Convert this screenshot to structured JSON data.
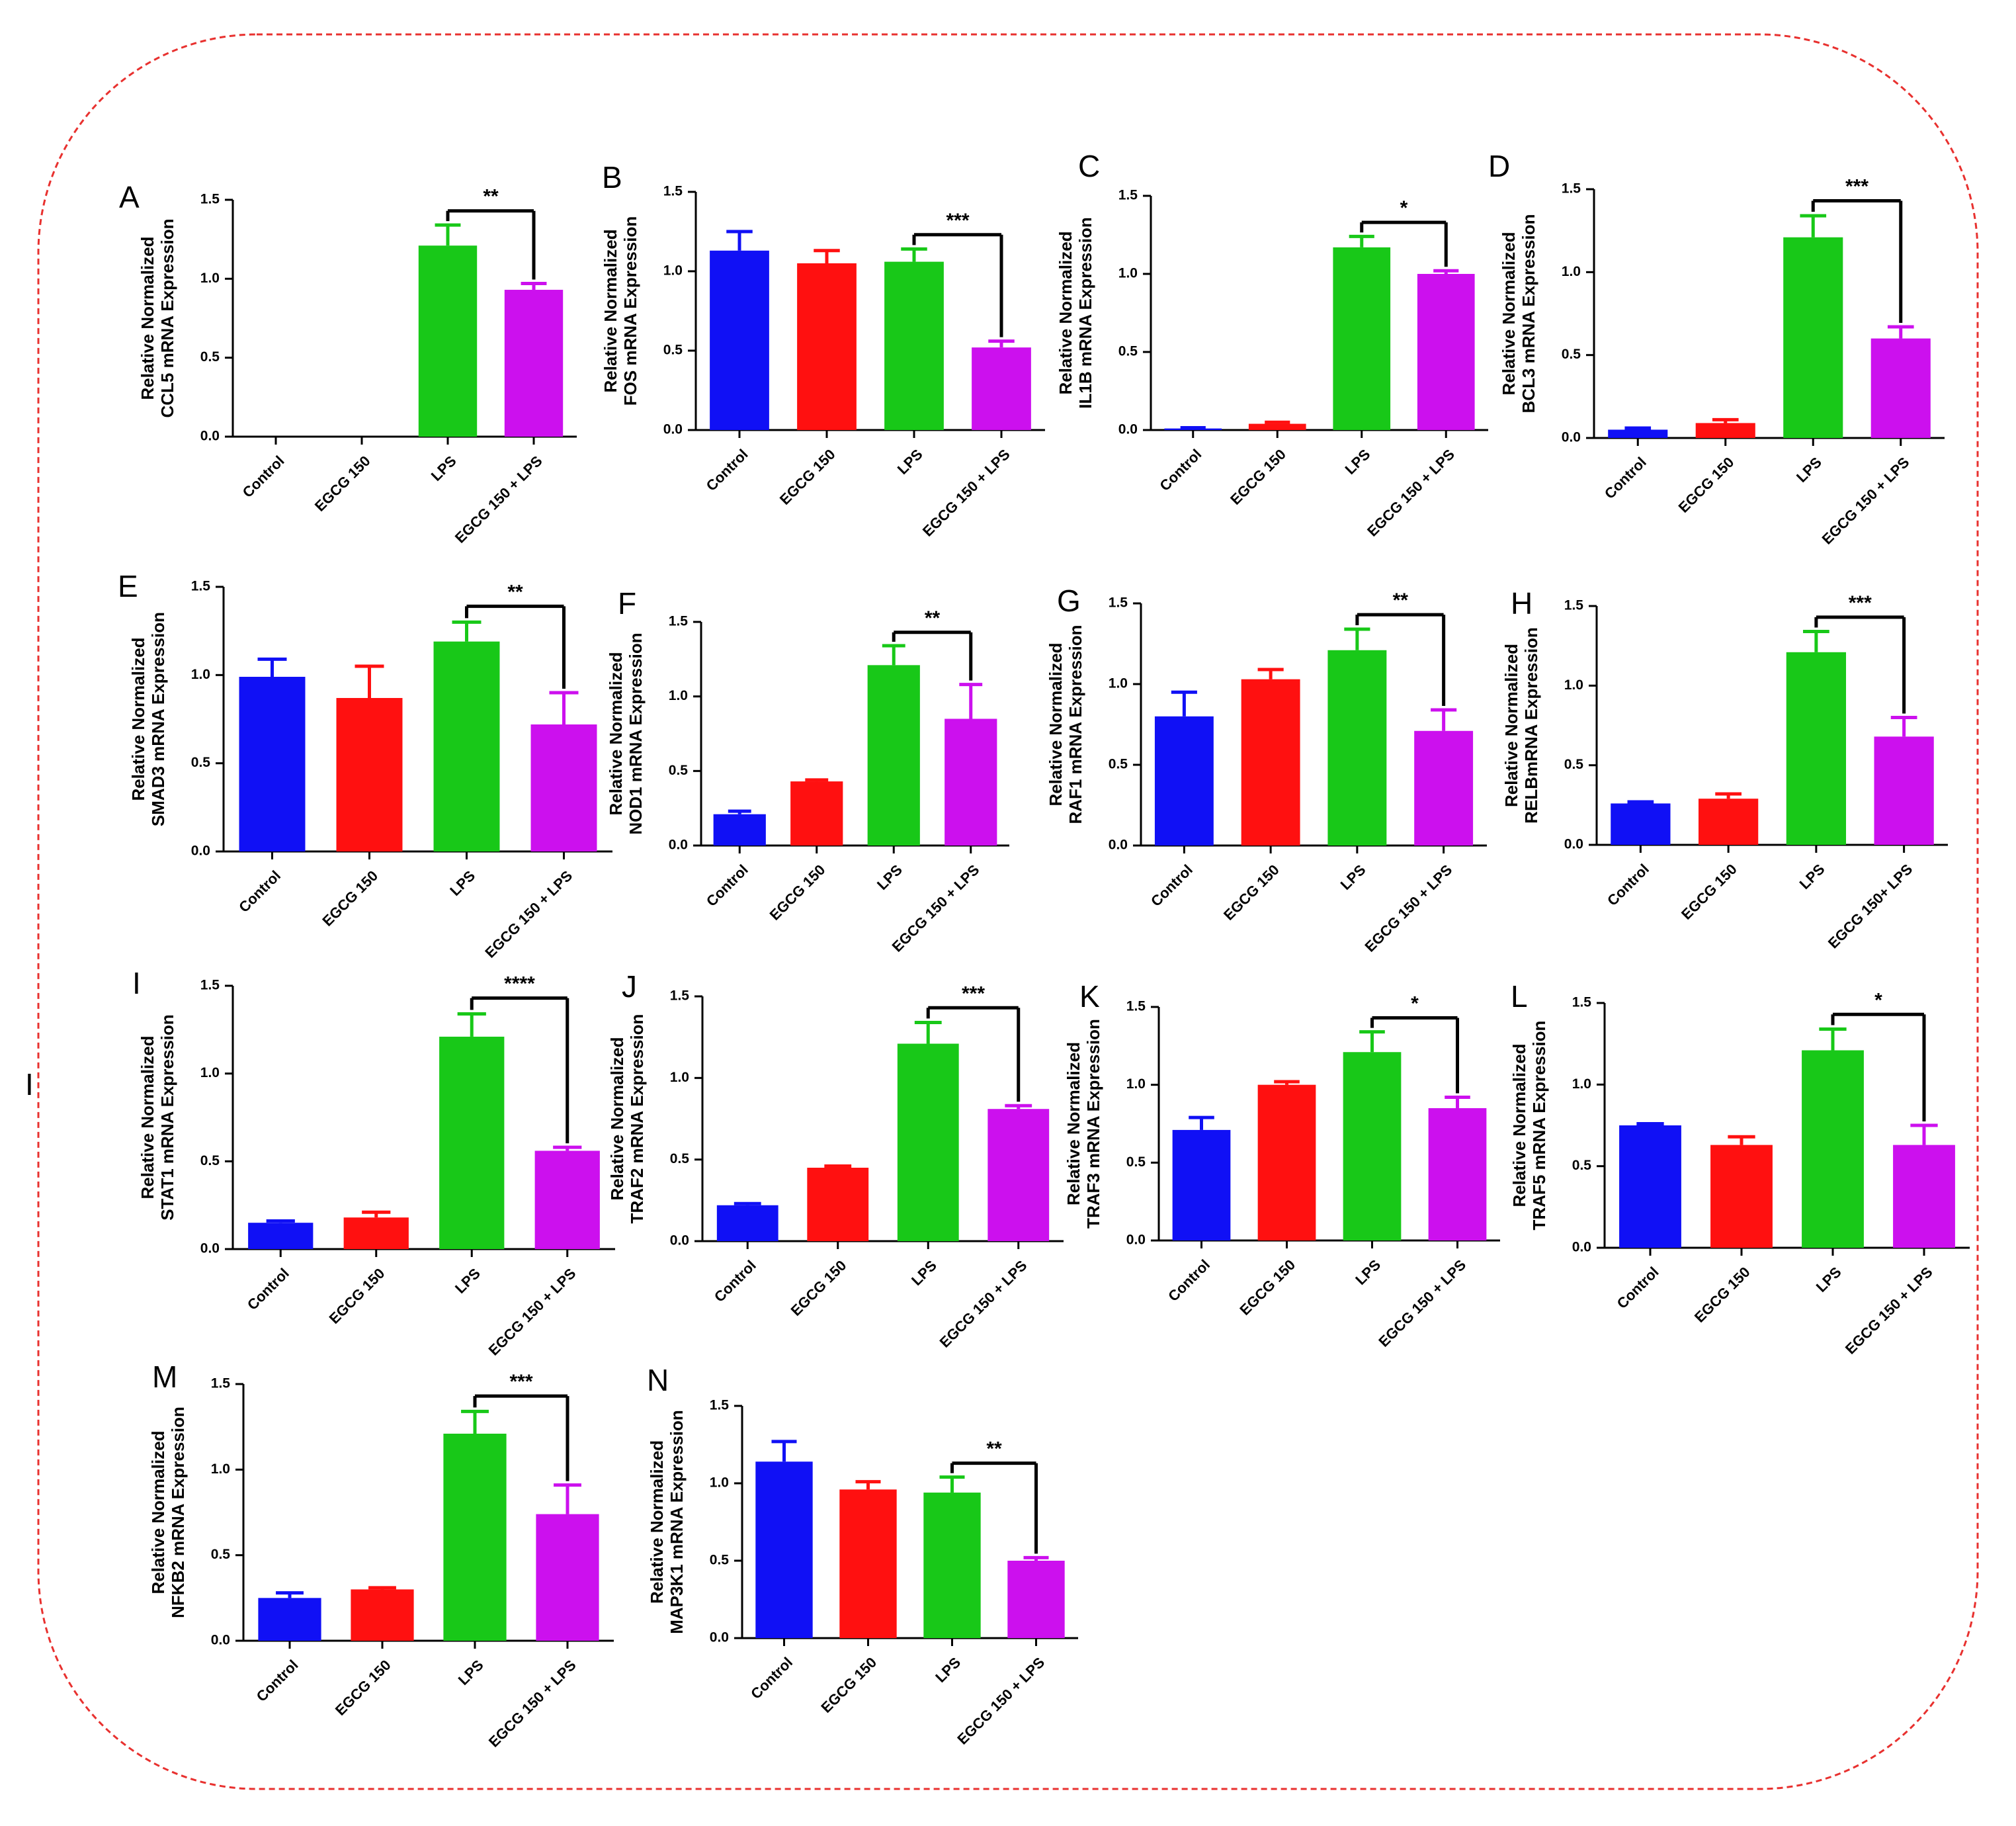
{
  "figure": {
    "border_color": "#e8312f",
    "stray_mark": "I"
  },
  "colors": {
    "Control": "#1010f5",
    "EGCG 150": "#ff1010",
    "LPS": "#18c818",
    "EGCG 150 + LPS": "#cc10ee"
  },
  "chart_data": [
    {
      "panel": "A",
      "type": "bar",
      "ylabel": [
        "Relative Normalized",
        "CCL5 mRNA Expression"
      ],
      "categories": [
        "Control",
        "EGCG 150",
        "LPS",
        "EGCG 150 + LPS"
      ],
      "values": [
        0.0,
        0.0,
        1.21,
        0.93
      ],
      "errors": [
        0,
        0,
        0.13,
        0.04
      ],
      "ylim": [
        0,
        1.5
      ],
      "yticks": [
        "0.0",
        "0.5",
        "1.0",
        "1.5"
      ],
      "significance": {
        "from": 2,
        "to": 3,
        "label": "**"
      }
    },
    {
      "panel": "B",
      "type": "bar",
      "ylabel": [
        "Relative Normalized",
        "FOS mRNA Expression"
      ],
      "categories": [
        "Control",
        "EGCG 150",
        "LPS",
        "EGCG 150 + LPS"
      ],
      "values": [
        1.13,
        1.05,
        1.06,
        0.52
      ],
      "errors": [
        0.12,
        0.08,
        0.08,
        0.04
      ],
      "ylim": [
        0,
        1.5
      ],
      "yticks": [
        "0.0",
        "0.5",
        "1.0",
        "1.5"
      ],
      "significance": {
        "from": 2,
        "to": 3,
        "label": "***"
      }
    },
    {
      "panel": "C",
      "type": "bar",
      "ylabel": [
        "Relative Normalized",
        "IL1B mRNA Expression"
      ],
      "categories": [
        "Control",
        "EGCG 150",
        "LPS",
        "EGCG 150 + LPS"
      ],
      "values": [
        0.01,
        0.04,
        1.17,
        1.0
      ],
      "errors": [
        0.005,
        0.01,
        0.07,
        0.02
      ],
      "ylim": [
        0,
        1.5
      ],
      "yticks": [
        "0.0",
        "0.5",
        "1.0",
        "1.5"
      ],
      "significance": {
        "from": 2,
        "to": 3,
        "label": "*"
      }
    },
    {
      "panel": "D",
      "type": "bar",
      "ylabel": [
        "Relative Normalized",
        "BCL3 mRNA Expression"
      ],
      "categories": [
        "Control",
        "EGCG 150",
        "LPS",
        "EGCG 150 + LPS"
      ],
      "values": [
        0.05,
        0.09,
        1.21,
        0.6
      ],
      "errors": [
        0.01,
        0.02,
        0.13,
        0.07
      ],
      "ylim": [
        0,
        1.5
      ],
      "yticks": [
        "0.0",
        "0.5",
        "1.0",
        "1.5"
      ],
      "significance": {
        "from": 2,
        "to": 3,
        "label": "***"
      }
    },
    {
      "panel": "E",
      "type": "bar",
      "ylabel": [
        "Relative Normalized",
        "SMAD3 mRNA Expression"
      ],
      "categories": [
        "Control",
        "EGCG 150",
        "LPS",
        "EGCG 150 + LPS"
      ],
      "values": [
        0.99,
        0.87,
        1.19,
        0.72
      ],
      "errors": [
        0.1,
        0.18,
        0.11,
        0.18
      ],
      "ylim": [
        0,
        1.5
      ],
      "yticks": [
        "0.0",
        "0.5",
        "1.0",
        "1.5"
      ],
      "significance": {
        "from": 2,
        "to": 3,
        "label": "**"
      }
    },
    {
      "panel": "F",
      "type": "bar",
      "ylabel": [
        "Relative Normalized",
        "NOD1 mRNA Expression"
      ],
      "categories": [
        "Control",
        "EGCG 150",
        "LPS",
        "EGCG 150 + LPS"
      ],
      "values": [
        0.21,
        0.43,
        1.21,
        0.85
      ],
      "errors": [
        0.02,
        0.01,
        0.13,
        0.23
      ],
      "ylim": [
        0,
        1.5
      ],
      "yticks": [
        "0.0",
        "0.5",
        "1.0",
        "1.5"
      ],
      "significance": {
        "from": 2,
        "to": 3,
        "label": "**"
      }
    },
    {
      "panel": "G",
      "type": "bar",
      "ylabel": [
        "Relative Normalized",
        "RAF1 mRNA Expression"
      ],
      "categories": [
        "Control",
        "EGCG 150",
        "LPS",
        "EGCG 150 + LPS"
      ],
      "values": [
        0.8,
        1.03,
        1.21,
        0.71
      ],
      "errors": [
        0.15,
        0.06,
        0.13,
        0.13
      ],
      "ylim": [
        0,
        1.5
      ],
      "yticks": [
        "0.0",
        "0.5",
        "1.0",
        "1.5"
      ],
      "significance": {
        "from": 2,
        "to": 3,
        "label": "**"
      }
    },
    {
      "panel": "H",
      "type": "bar",
      "ylabel": [
        "Relative Normalized",
        "RELBmRNA Expression"
      ],
      "categories": [
        "Control",
        "EGCG 150",
        "LPS",
        "EGCG 150+ LPS"
      ],
      "values": [
        0.26,
        0.29,
        1.21,
        0.68
      ],
      "errors": [
        0.01,
        0.03,
        0.13,
        0.12
      ],
      "ylim": [
        0,
        1.5
      ],
      "yticks": [
        "0.0",
        "0.5",
        "1.0",
        "1.5"
      ],
      "significance": {
        "from": 2,
        "to": 3,
        "label": "***"
      }
    },
    {
      "panel": "I",
      "type": "bar",
      "ylabel": [
        "Relative Normalized",
        "STAT1 mRNA Expression"
      ],
      "categories": [
        "Control",
        "EGCG 150",
        "LPS",
        "EGCG 150 + LPS"
      ],
      "values": [
        0.15,
        0.18,
        1.21,
        0.56
      ],
      "errors": [
        0.01,
        0.03,
        0.13,
        0.02
      ],
      "ylim": [
        0,
        1.5
      ],
      "yticks": [
        "0.0",
        "0.5",
        "1.0",
        "1.5"
      ],
      "significance": {
        "from": 2,
        "to": 3,
        "label": "****"
      }
    },
    {
      "panel": "J",
      "type": "bar",
      "ylabel": [
        "Relative Normalized",
        "TRAF2 mRNA Expression"
      ],
      "categories": [
        "Control",
        "EGCG 150",
        "LPS",
        "EGCG 150 + LPS"
      ],
      "values": [
        0.22,
        0.45,
        1.21,
        0.81
      ],
      "errors": [
        0.01,
        0.01,
        0.13,
        0.02
      ],
      "ylim": [
        0,
        1.5
      ],
      "yticks": [
        "0.0",
        "0.5",
        "1.0",
        "1.5"
      ],
      "significance": {
        "from": 2,
        "to": 3,
        "label": "***"
      }
    },
    {
      "panel": "K",
      "type": "bar",
      "ylabel": [
        "Relative Normalized",
        "TRAF3 mRNA Expression"
      ],
      "categories": [
        "Control",
        "EGCG 150",
        "LPS",
        "EGCG 150 + LPS"
      ],
      "values": [
        0.71,
        1.0,
        1.21,
        0.85
      ],
      "errors": [
        0.08,
        0.02,
        0.13,
        0.07
      ],
      "ylim": [
        0,
        1.5
      ],
      "yticks": [
        "0.0",
        "0.5",
        "1.0",
        "1.5"
      ],
      "significance": {
        "from": 2,
        "to": 3,
        "label": "*"
      }
    },
    {
      "panel": "L",
      "type": "bar",
      "ylabel": [
        "Relative Normalized",
        "TRAF5 mRNA Expression"
      ],
      "categories": [
        "Control",
        "EGCG 150",
        "LPS",
        "EGCG 150 + LPS"
      ],
      "values": [
        0.75,
        0.63,
        1.21,
        0.63
      ],
      "errors": [
        0.01,
        0.05,
        0.13,
        0.12
      ],
      "ylim": [
        0,
        1.5
      ],
      "yticks": [
        "0.0",
        "0.5",
        "1.0",
        "1.5"
      ],
      "significance": {
        "from": 2,
        "to": 3,
        "label": "*"
      }
    },
    {
      "panel": "M",
      "type": "bar",
      "ylabel": [
        "Relative Normalized",
        "NFKB2 mRNA Expression"
      ],
      "categories": [
        "Control",
        "EGCG 150",
        "LPS",
        "EGCG 150 + LPS"
      ],
      "values": [
        0.25,
        0.3,
        1.21,
        0.74
      ],
      "errors": [
        0.03,
        0.01,
        0.13,
        0.17
      ],
      "ylim": [
        0,
        1.5
      ],
      "yticks": [
        "0.0",
        "0.5",
        "1.0",
        "1.5"
      ],
      "significance": {
        "from": 2,
        "to": 3,
        "label": "***"
      }
    },
    {
      "panel": "N",
      "type": "bar",
      "ylabel": [
        "Relative Normalized",
        "MAP3K1 mRNA Expression"
      ],
      "categories": [
        "Control",
        "EGCG 150",
        "LPS",
        "EGCG 150 + LPS"
      ],
      "values": [
        1.14,
        0.96,
        0.94,
        0.5
      ],
      "errors": [
        0.13,
        0.05,
        0.1,
        0.02
      ],
      "ylim": [
        0,
        1.5
      ],
      "yticks": [
        "0.0",
        "0.5",
        "1.0",
        "1.5"
      ],
      "significance": {
        "from": 2,
        "to": 3,
        "label": "**"
      }
    }
  ]
}
